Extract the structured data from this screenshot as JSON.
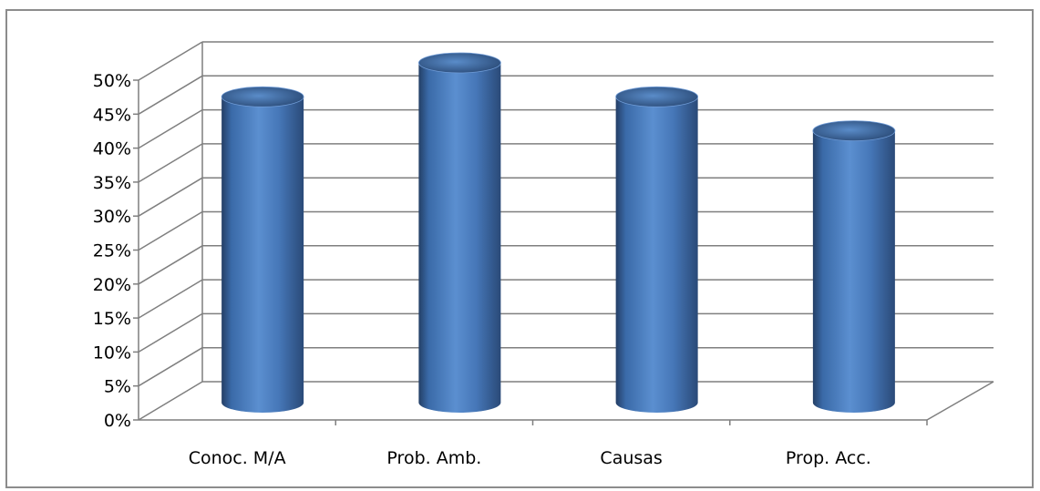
{
  "chart_data": {
    "type": "bar",
    "style": "3d-cylinder",
    "categories": [
      "Conoc. M/A",
      "Prob. Amb.",
      "Causas",
      "Prop. Acc."
    ],
    "values": [
      45,
      50,
      45,
      40
    ],
    "ylim": [
      0,
      50
    ],
    "yticks": [
      "0%",
      "5%",
      "10%",
      "15%",
      "20%",
      "25%",
      "30%",
      "35%",
      "40%",
      "45%",
      "50%"
    ],
    "grid": true,
    "legend": "none",
    "colors": {
      "bar": "#4f81bd",
      "bar_dark": "#2c4d75",
      "bar_light": "#8db3e2",
      "grid": "#7f7f7f"
    }
  }
}
